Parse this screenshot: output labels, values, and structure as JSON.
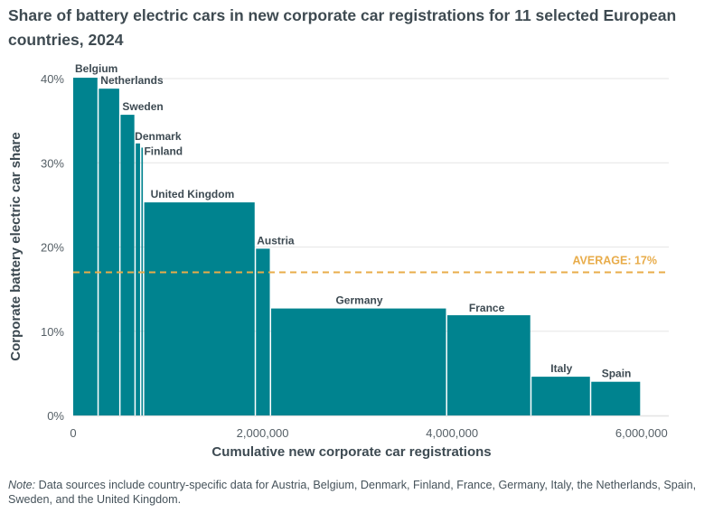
{
  "title": "Share of battery electric cars in new corporate car registrations for 11 selected European countries, 2024",
  "note": {
    "label": "Note:",
    "text": " Data sources include country-specific data for Austria, Belgium, Denmark, Finland, France, Germany, Italy, the Netherlands, Spain, Sweden, and the United Kingdom."
  },
  "colors": {
    "bar": "#00838f",
    "average": "#e8ac4a",
    "grid": "#e6e6e6"
  },
  "chart_data": {
    "type": "bar",
    "subtype": "variable-width (marimekko-style) bar",
    "title": "Share of battery electric cars in new corporate car registrations for 11 selected European countries, 2024",
    "xlabel": "Cumulative new corporate car registrations",
    "ylabel": "Corporate battery electric car share",
    "xlim": [
      0,
      6300000
    ],
    "ylim": [
      0,
      40
    ],
    "x_ticks": [
      0,
      2000000,
      4000000,
      6000000
    ],
    "x_tick_labels": [
      "0",
      "2,000,000",
      "4,000,000",
      "6,000,000"
    ],
    "y_ticks": [
      0,
      10,
      20,
      30,
      40
    ],
    "y_tick_labels": [
      "0%",
      "10%",
      "20%",
      "30%",
      "40%"
    ],
    "grid": "horizontal",
    "average": {
      "value": 17,
      "label": "AVERAGE: 17%"
    },
    "categories": [
      "Belgium",
      "Netherlands",
      "Sweden",
      "Denmark",
      "Finland",
      "United Kingdom",
      "Austria",
      "Germany",
      "France",
      "Italy",
      "Spain"
    ],
    "registrations": [
      270000,
      230000,
      160000,
      60000,
      30000,
      1180000,
      160000,
      1860000,
      890000,
      630000,
      530000
    ],
    "values": [
      40.1,
      38.8,
      35.7,
      32.3,
      31.8,
      25.3,
      19.8,
      12.7,
      11.9,
      4.6,
      4.0
    ],
    "units": {
      "x": "registrations",
      "y": "percent"
    }
  }
}
